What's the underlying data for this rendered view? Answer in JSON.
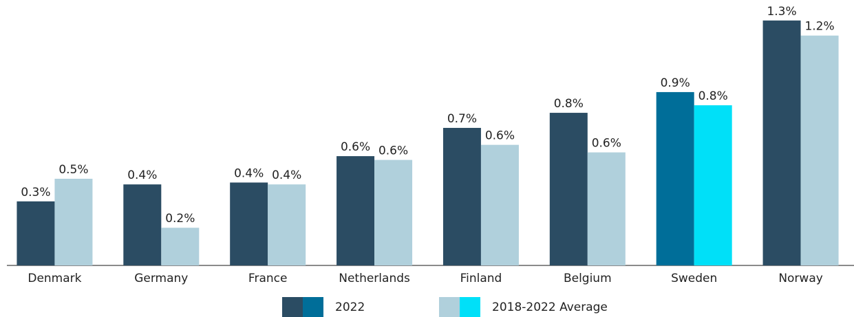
{
  "chart_data": {
    "type": "bar",
    "categories": [
      "Denmark",
      "Germany",
      "France",
      "Netherlands",
      "Finland",
      "Belgium",
      "Sweden",
      "Norway"
    ],
    "series": [
      {
        "name": "2022",
        "color": "#2b4c63",
        "highlight_color": "#006e99",
        "values": [
          0.34,
          0.43,
          0.44,
          0.58,
          0.73,
          0.81,
          0.92,
          1.3
        ],
        "value_labels": [
          "0.3%",
          "0.4%",
          "0.4%",
          "0.6%",
          "0.7%",
          "0.8%",
          "0.9%",
          "1.3%"
        ]
      },
      {
        "name": "2018-2022 Average",
        "color": "#b0d0dc",
        "highlight_color": "#00e0f8",
        "values": [
          0.46,
          0.2,
          0.43,
          0.56,
          0.64,
          0.6,
          0.85,
          1.22
        ],
        "value_labels": [
          "0.5%",
          "0.2%",
          "0.4%",
          "0.6%",
          "0.6%",
          "0.6%",
          "0.8%",
          "1.2%"
        ]
      }
    ],
    "highlight": "Sweden",
    "ylim": [
      0,
      1.4
    ]
  }
}
